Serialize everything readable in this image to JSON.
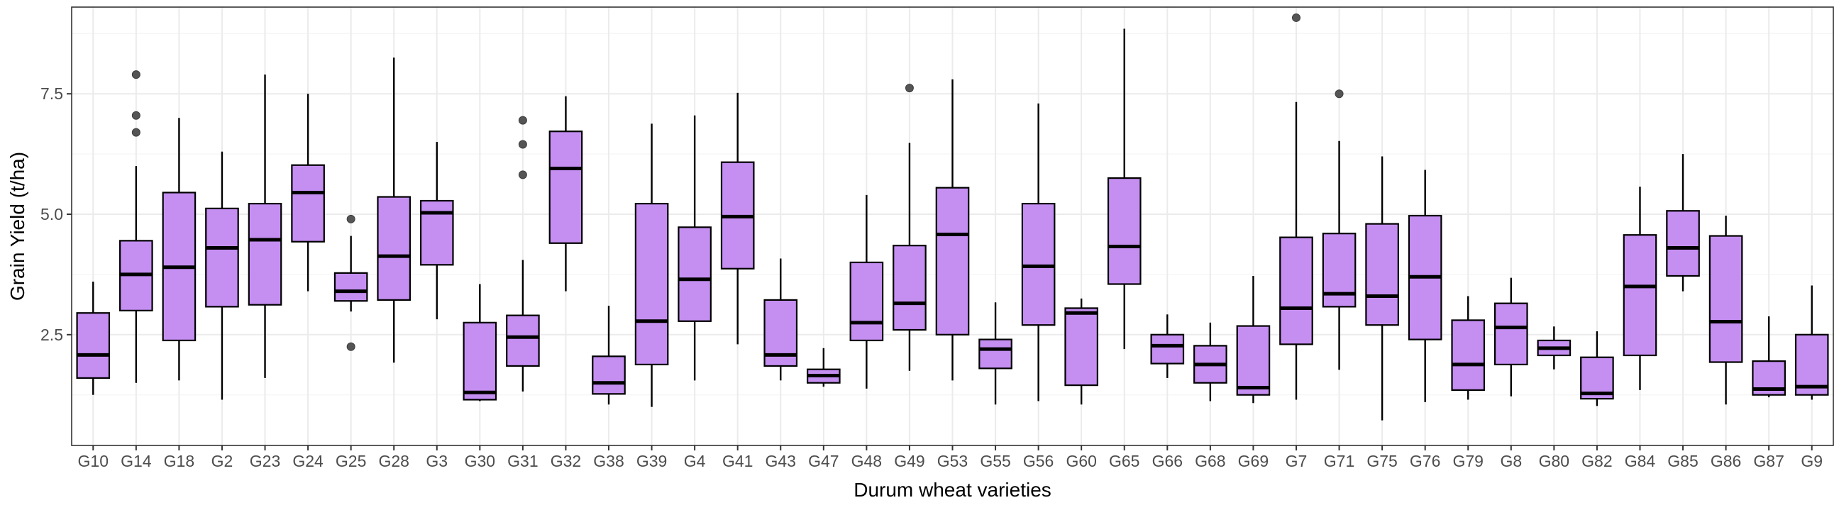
{
  "chart_data": {
    "type": "boxplot",
    "xlabel": "Durum wheat varieties",
    "ylabel": "Grain Yield (t/ha)",
    "ylim": [
      0.2,
      9.3
    ],
    "yticks": [
      2.5,
      5.0,
      7.5
    ],
    "ytick_labels": [
      "2.5",
      "5.0",
      "7.5"
    ],
    "grid": true,
    "colors": {
      "box_fill": "#c58ff2",
      "box_stroke": "#000000",
      "outlier": "#555555",
      "grid_major": "#ebebeb",
      "grid_minor": "#f5f5f5",
      "panel_border": "#333333"
    },
    "categories": [
      "G10",
      "G14",
      "G18",
      "G2",
      "G23",
      "G24",
      "G25",
      "G28",
      "G3",
      "G30",
      "G31",
      "G32",
      "G38",
      "G39",
      "G4",
      "G41",
      "G43",
      "G47",
      "G48",
      "G49",
      "G53",
      "G55",
      "G56",
      "G60",
      "G65",
      "G66",
      "G68",
      "G69",
      "G7",
      "G71",
      "G75",
      "G76",
      "G79",
      "G8",
      "G80",
      "G82",
      "G84",
      "G85",
      "G86",
      "G87",
      "G9"
    ],
    "boxes": [
      {
        "min": 1.25,
        "q1": 1.6,
        "median": 2.08,
        "q3": 2.95,
        "max": 3.6,
        "outliers": []
      },
      {
        "min": 1.5,
        "q1": 3.0,
        "median": 3.75,
        "q3": 4.45,
        "max": 6.0,
        "outliers": [
          6.7,
          7.05,
          7.9
        ]
      },
      {
        "min": 1.55,
        "q1": 2.38,
        "median": 3.9,
        "q3": 5.45,
        "max": 7.0,
        "outliers": []
      },
      {
        "min": 1.15,
        "q1": 3.08,
        "median": 4.3,
        "q3": 5.12,
        "max": 6.3,
        "outliers": []
      },
      {
        "min": 1.6,
        "q1": 3.12,
        "median": 4.47,
        "q3": 5.22,
        "max": 7.9,
        "outliers": []
      },
      {
        "min": 3.4,
        "q1": 4.43,
        "median": 5.45,
        "q3": 6.02,
        "max": 7.5,
        "outliers": []
      },
      {
        "min": 2.98,
        "q1": 3.2,
        "median": 3.4,
        "q3": 3.78,
        "max": 4.55,
        "outliers": [
          2.25,
          4.9
        ]
      },
      {
        "min": 1.92,
        "q1": 3.22,
        "median": 4.13,
        "q3": 5.36,
        "max": 8.25,
        "outliers": []
      },
      {
        "min": 2.82,
        "q1": 3.95,
        "median": 5.03,
        "q3": 5.28,
        "max": 6.5,
        "outliers": []
      },
      {
        "min": 1.12,
        "q1": 1.15,
        "median": 1.3,
        "q3": 2.75,
        "max": 3.55,
        "outliers": []
      },
      {
        "min": 1.32,
        "q1": 1.85,
        "median": 2.45,
        "q3": 2.9,
        "max": 4.05,
        "outliers": [
          5.82,
          6.45,
          6.95
        ]
      },
      {
        "min": 3.4,
        "q1": 4.4,
        "median": 5.95,
        "q3": 6.72,
        "max": 7.45,
        "outliers": []
      },
      {
        "min": 1.05,
        "q1": 1.27,
        "median": 1.5,
        "q3": 2.05,
        "max": 3.1,
        "outliers": []
      },
      {
        "min": 1.0,
        "q1": 1.88,
        "median": 2.78,
        "q3": 5.22,
        "max": 6.88,
        "outliers": []
      },
      {
        "min": 1.55,
        "q1": 2.78,
        "median": 3.65,
        "q3": 4.73,
        "max": 7.05,
        "outliers": []
      },
      {
        "min": 2.3,
        "q1": 3.87,
        "median": 4.95,
        "q3": 6.08,
        "max": 7.52,
        "outliers": []
      },
      {
        "min": 1.55,
        "q1": 1.85,
        "median": 2.08,
        "q3": 3.22,
        "max": 4.08,
        "outliers": []
      },
      {
        "min": 1.42,
        "q1": 1.5,
        "median": 1.65,
        "q3": 1.78,
        "max": 2.22,
        "outliers": []
      },
      {
        "min": 1.38,
        "q1": 2.38,
        "median": 2.75,
        "q3": 4.0,
        "max": 5.4,
        "outliers": []
      },
      {
        "min": 1.75,
        "q1": 2.6,
        "median": 3.15,
        "q3": 4.35,
        "max": 6.48,
        "outliers": [
          7.62
        ]
      },
      {
        "min": 1.55,
        "q1": 2.5,
        "median": 4.58,
        "q3": 5.55,
        "max": 7.8,
        "outliers": []
      },
      {
        "min": 1.05,
        "q1": 1.8,
        "median": 2.2,
        "q3": 2.4,
        "max": 3.17,
        "outliers": []
      },
      {
        "min": 1.12,
        "q1": 2.7,
        "median": 3.92,
        "q3": 5.22,
        "max": 7.3,
        "outliers": []
      },
      {
        "min": 1.05,
        "q1": 1.45,
        "median": 2.95,
        "q3": 3.05,
        "max": 3.25,
        "outliers": []
      },
      {
        "min": 2.2,
        "q1": 3.55,
        "median": 4.33,
        "q3": 5.75,
        "max": 8.85,
        "outliers": []
      },
      {
        "min": 1.6,
        "q1": 1.9,
        "median": 2.27,
        "q3": 2.5,
        "max": 2.92,
        "outliers": []
      },
      {
        "min": 1.12,
        "q1": 1.5,
        "median": 1.88,
        "q3": 2.27,
        "max": 2.75,
        "outliers": []
      },
      {
        "min": 1.08,
        "q1": 1.25,
        "median": 1.4,
        "q3": 2.68,
        "max": 3.72,
        "outliers": []
      },
      {
        "min": 1.15,
        "q1": 2.3,
        "median": 3.05,
        "q3": 4.52,
        "max": 7.33,
        "outliers": [
          9.08
        ]
      },
      {
        "min": 1.77,
        "q1": 3.08,
        "median": 3.35,
        "q3": 4.6,
        "max": 6.52,
        "outliers": [
          7.5
        ]
      },
      {
        "min": 0.72,
        "q1": 2.7,
        "median": 3.3,
        "q3": 4.8,
        "max": 6.2,
        "outliers": []
      },
      {
        "min": 1.1,
        "q1": 2.4,
        "median": 3.7,
        "q3": 4.97,
        "max": 5.92,
        "outliers": []
      },
      {
        "min": 1.15,
        "q1": 1.35,
        "median": 1.88,
        "q3": 2.8,
        "max": 3.3,
        "outliers": []
      },
      {
        "min": 1.22,
        "q1": 1.88,
        "median": 2.65,
        "q3": 3.15,
        "max": 3.68,
        "outliers": []
      },
      {
        "min": 1.78,
        "q1": 2.07,
        "median": 2.22,
        "q3": 2.38,
        "max": 2.67,
        "outliers": []
      },
      {
        "min": 1.02,
        "q1": 1.17,
        "median": 1.28,
        "q3": 2.03,
        "max": 2.57,
        "outliers": []
      },
      {
        "min": 1.35,
        "q1": 2.07,
        "median": 3.5,
        "q3": 4.57,
        "max": 5.57,
        "outliers": []
      },
      {
        "min": 3.4,
        "q1": 3.72,
        "median": 4.3,
        "q3": 5.07,
        "max": 6.25,
        "outliers": []
      },
      {
        "min": 1.05,
        "q1": 1.93,
        "median": 2.77,
        "q3": 4.55,
        "max": 4.97,
        "outliers": []
      },
      {
        "min": 1.2,
        "q1": 1.25,
        "median": 1.37,
        "q3": 1.95,
        "max": 2.88,
        "outliers": []
      },
      {
        "min": 1.15,
        "q1": 1.25,
        "median": 1.42,
        "q3": 2.5,
        "max": 3.52,
        "outliers": []
      }
    ]
  }
}
